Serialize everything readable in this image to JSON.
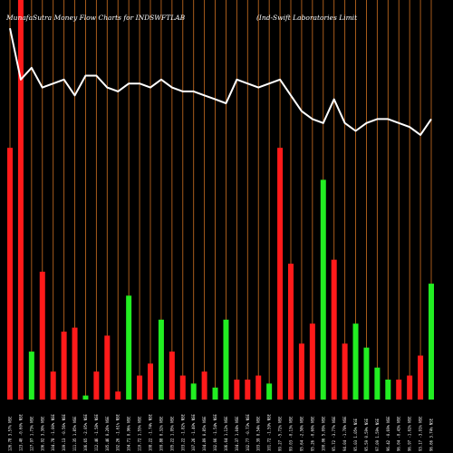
{
  "header": {
    "title_left": "MunafaSutra  Money Flow  Charts for INDSWFTLAB",
    "title_right": "(Ind-Swift Laboratories Limit"
  },
  "colors": {
    "background": "#000000",
    "gridline": "#b8641e",
    "up": "#22ee22",
    "down": "#ff1a1a",
    "price_line": "#ffffff",
    "text": "#ffffff"
  },
  "chart_data": {
    "type": "bar",
    "title": "MunafaSutra  Money Flow  Charts for INDSWFTLAB",
    "subtitle": "(Ind-Swift Laboratories Limit",
    "grid": true,
    "categories": [
      "126.78 3.57% NSE",
      "123.40 -0.60% NSE",
      "127.97 1.73% NSE",
      "106.92 3.30% NSE",
      "104.78 -1.00% NSE",
      "109.13 -0.56% NSE",
      "111.35 1.85% NSE",
      "106.65 -2.05% NSE",
      "112.46 -1.58% NSE",
      "105.46 0.26% NSE",
      "102.26 -1.61% NSE",
      "104.71 0.96% NSE",
      "110.72 1.55% NSE",
      "108.22 -1.74% NSE",
      "109.88 0.32% NSE",
      "105.22 1.95% NSE",
      "103.22 -1.82% NSE",
      "107.26 -1.40% NSE",
      "104.89 0.85% NSE",
      "102.66 -1.54% NSE",
      "106.64 1.12% NSE",
      "104.37 1.04% NSE",
      "102.77 -0.73% NSE",
      "103.39 0.54% NSE",
      "101.72 -1.59% NSE",
      "99.27 -5.72% NSE",
      "99.03 -0.13% NSE",
      "95.64 -2.58% NSE",
      "95.26 -0.60% NSE",
      "100.06 5.09% NSE",
      "95.72 -3.77% NSE",
      "94.04 -1.78% NSE",
      "95.03 1.05% NSE",
      "95.59 0.59% NSE",
      "97.09 1.59% NSE",
      "96.42 -0.69% NSE",
      "96.04 -0.43% NSE",
      "96.97 -1.02% NSE",
      "93.17 -3.91% NSE",
      "96.66 3.74% NSE"
    ],
    "money_flow": [
      0.63,
      1.0,
      0.12,
      0.32,
      0.07,
      0.17,
      0.18,
      0.01,
      0.07,
      0.16,
      0.02,
      0.26,
      0.06,
      0.09,
      0.2,
      0.12,
      0.06,
      0.04,
      0.07,
      0.03,
      0.2,
      0.05,
      0.05,
      0.06,
      0.04,
      0.63,
      0.34,
      0.14,
      0.19,
      0.55,
      0.35,
      0.14,
      0.19,
      0.13,
      0.08,
      0.05,
      0.05,
      0.06,
      0.11,
      0.29
    ],
    "direction": [
      "down",
      "down",
      "up",
      "down",
      "down",
      "down",
      "down",
      "up",
      "down",
      "down",
      "down",
      "up",
      "down",
      "down",
      "up",
      "down",
      "down",
      "up",
      "down",
      "up",
      "up",
      "down",
      "down",
      "down",
      "up",
      "down",
      "down",
      "down",
      "down",
      "up",
      "down",
      "down",
      "up",
      "up",
      "up",
      "up",
      "down",
      "down",
      "down",
      "up"
    ],
    "price_line": [
      0.94,
      0.81,
      0.84,
      0.79,
      0.8,
      0.81,
      0.77,
      0.82,
      0.82,
      0.79,
      0.78,
      0.8,
      0.8,
      0.79,
      0.81,
      0.79,
      0.78,
      0.78,
      0.77,
      0.76,
      0.75,
      0.81,
      0.8,
      0.79,
      0.8,
      0.81,
      0.77,
      0.73,
      0.71,
      0.7,
      0.76,
      0.7,
      0.68,
      0.7,
      0.71,
      0.71,
      0.7,
      0.69,
      0.67,
      0.71
    ]
  }
}
